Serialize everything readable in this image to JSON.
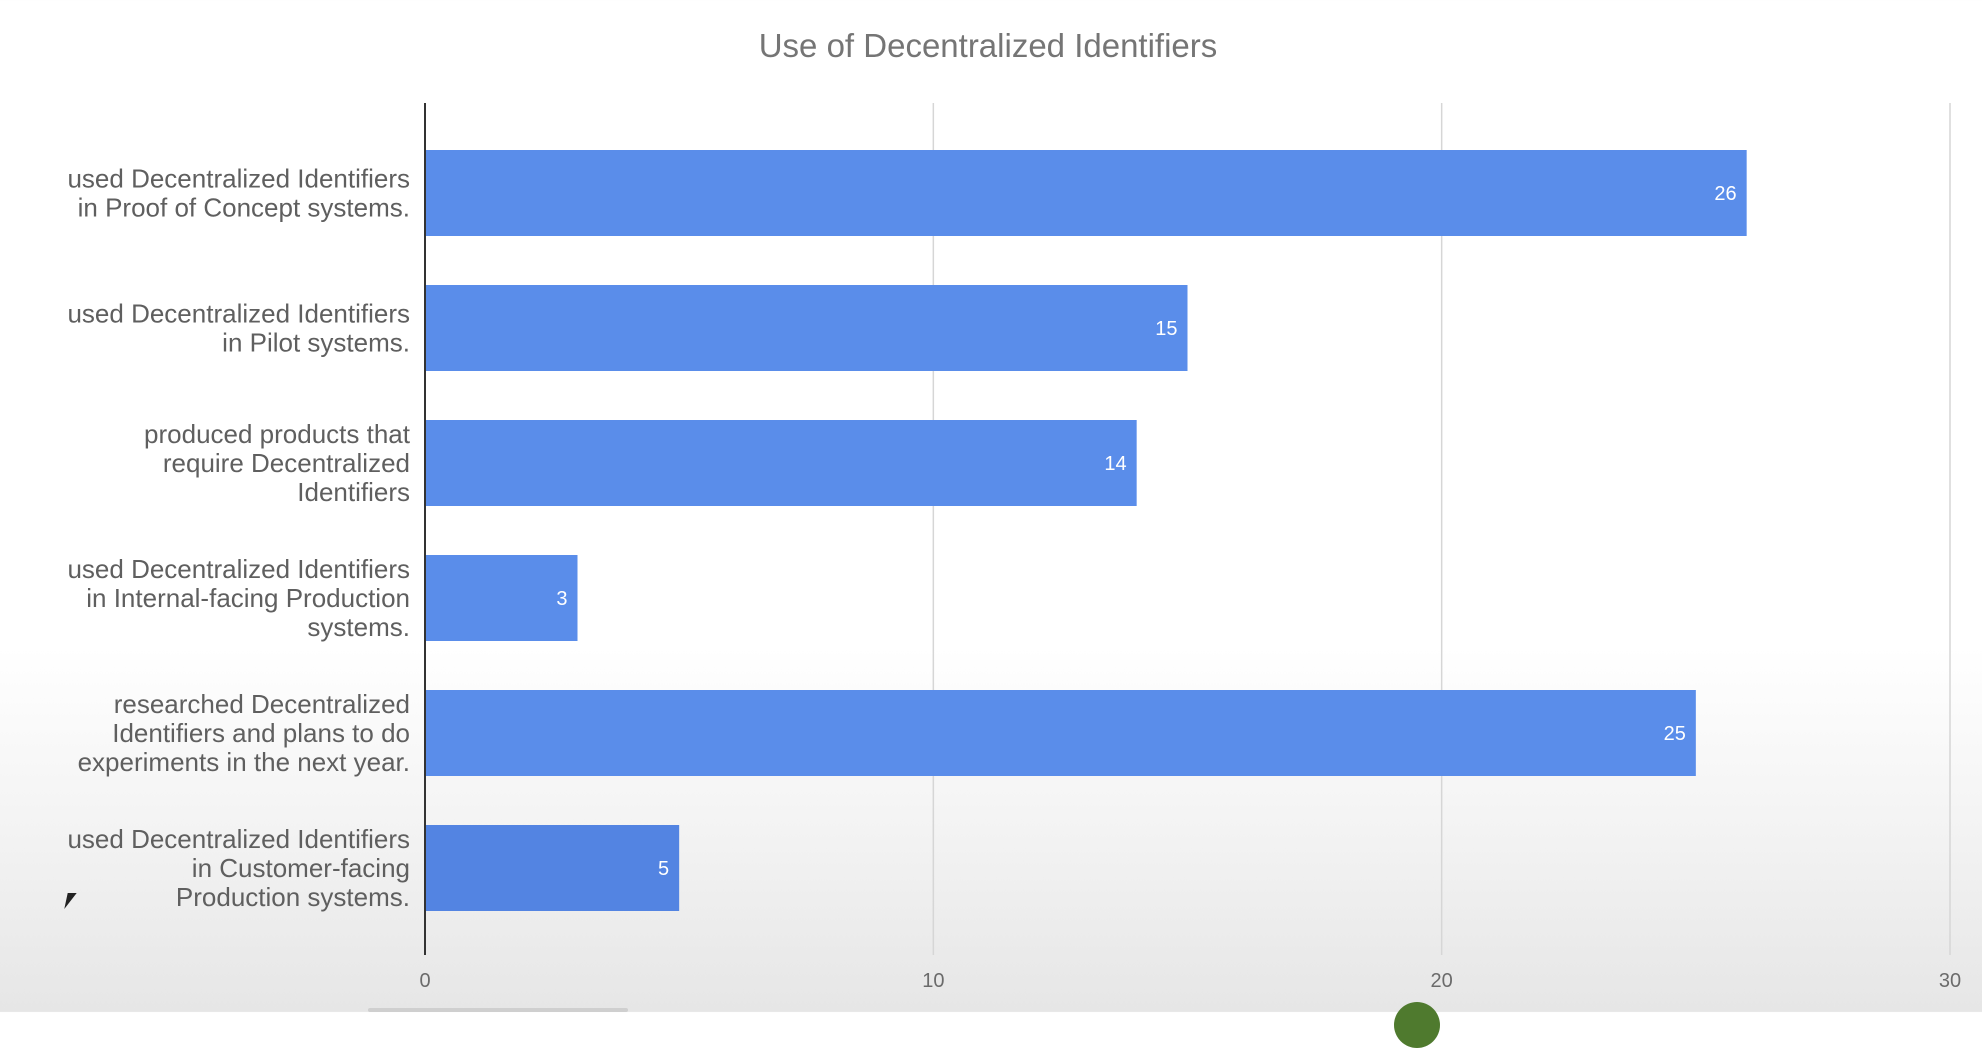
{
  "chart_data": {
    "type": "bar",
    "orientation": "horizontal",
    "title": "Use of Decentralized Identifiers",
    "categories": [
      [
        "used Decentralized Identifiers",
        "in Proof of Concept systems."
      ],
      [
        "used Decentralized Identifiers",
        "in Pilot systems."
      ],
      [
        "produced products that",
        "require Decentralized",
        "Identifiers"
      ],
      [
        "used Decentralized Identifiers",
        "in Internal-facing Production",
        "systems."
      ],
      [
        "researched Decentralized",
        "Identifiers and plans to do",
        "experiments in the next year."
      ],
      [
        "used Decentralized Identifiers",
        "in Customer-facing",
        "Production systems."
      ]
    ],
    "values": [
      26,
      15,
      14,
      3,
      25,
      5
    ],
    "data_labels": [
      "26",
      "15",
      "14",
      "3",
      "25",
      "5"
    ],
    "xlim": [
      0,
      30
    ],
    "x_ticks": [
      0,
      10,
      20,
      30
    ],
    "x_tick_labels": [
      "0",
      "10",
      "20",
      "30"
    ],
    "grid": true,
    "legend": "none",
    "colors": {
      "bar": "#5a8dea",
      "bar_last": "#5384e2",
      "grid": "#d6d6d6",
      "axis": "#333333"
    }
  }
}
